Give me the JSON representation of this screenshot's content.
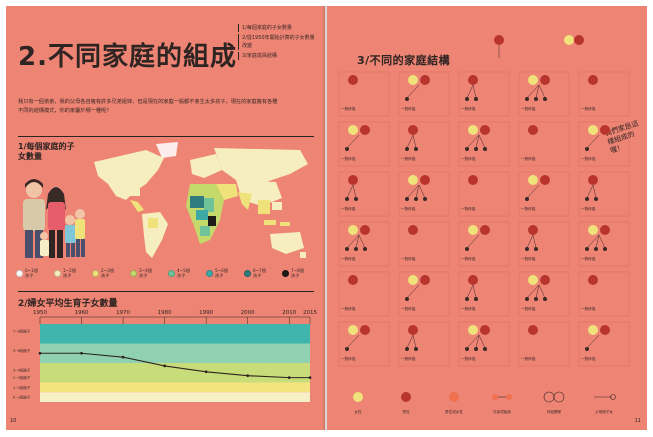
{
  "left_page": {
    "title": "2.不同家庭的組成",
    "toc": [
      "1/每個家庭的子女數量",
      "2/從1950年開始計算的子女數量改變",
      "3/家庭成員結構"
    ],
    "intro": "我只有一個弟弟，我的父母各自擁有許多兄弟姐妹，但是現在的家庭一般都不會生太多孩子。現在的家庭擁有各種不同的結構模式，你的家屬於哪一種呢？",
    "section1": "1/每個家庭的子女數量",
    "section2": "2/婦女平均生育子女數量",
    "legend": [
      {
        "label": "0~1個孩子",
        "color": "#ffffff"
      },
      {
        "label": "1~2個孩子",
        "color": "#f7eec0"
      },
      {
        "label": "2~3個孩子",
        "color": "#efe27a"
      },
      {
        "label": "3~4個孩子",
        "color": "#c5d86a"
      },
      {
        "label": "4~5個孩子",
        "color": "#6fc39a"
      },
      {
        "label": "5~6個孩子",
        "color": "#3fa9a6"
      },
      {
        "label": "6~7個孩子",
        "color": "#2e7c7e"
      },
      {
        "label": "7~8個孩子",
        "color": "#1e1a18"
      }
    ],
    "page_number": "10"
  },
  "chart_data": {
    "type": "line",
    "title": "2/婦女平均生育子女數量",
    "x": [
      1950,
      1960,
      1970,
      1980,
      1990,
      2000,
      2010,
      2015
    ],
    "xticks": [
      "1950",
      "1960",
      "1970",
      "1980",
      "1990",
      "2000",
      "2010",
      "2015"
    ],
    "series": [
      {
        "values": [
          5.0,
          5.0,
          4.6,
          3.7,
          3.1,
          2.7,
          2.5,
          2.5
        ]
      }
    ],
    "ylim": [
      0,
      8
    ],
    "bands": [
      {
        "from": 6,
        "to": 8,
        "color": "#3fb5ad"
      },
      {
        "from": 4,
        "to": 6,
        "color": "#8fd1b0"
      },
      {
        "from": 2,
        "to": 4,
        "color": "#c9dc7a"
      },
      {
        "from": 1,
        "to": 2,
        "color": "#f3e47f"
      },
      {
        "from": 0,
        "to": 1,
        "color": "#f7efc6"
      }
    ],
    "ytick_labels": [
      "7~8個孩子",
      "5~6個孩子",
      "3~4個孩子",
      "2~3個孩子",
      "1~2個孩子",
      "0~1個孩子"
    ]
  },
  "right_page": {
    "section3": "3/不同的家庭結構",
    "hand_note": "我們家是這樣組成的喔！",
    "cell_caption": "一對伴侶",
    "page_number": "11",
    "bottom_legend": [
      "女性",
      "男性",
      "男性或女性",
      "兄弟或姐妹",
      "伴侶關係",
      "父母與子女"
    ]
  }
}
